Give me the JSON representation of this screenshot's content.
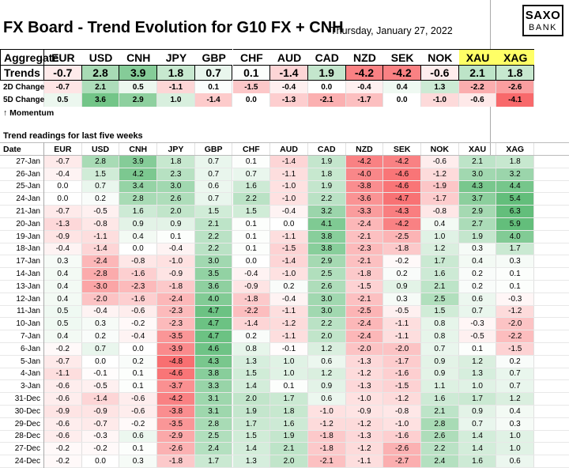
{
  "title": "FX Board - Trend Evolution for G10 FX + CNH",
  "date": "Thursday, January 27, 2022",
  "logo": {
    "line1": "SAXO",
    "line2": "BANK"
  },
  "currencies": [
    "EUR",
    "USD",
    "CNH",
    "JPY",
    "GBP",
    "CHF",
    "AUD",
    "CAD",
    "NZD",
    "SEK",
    "NOK",
    "XAU",
    "XAG"
  ],
  "aggregate_label": "Aggregate",
  "trends_label": "Trends ->",
  "trends": [
    -0.7,
    2.8,
    3.9,
    1.8,
    0.7,
    0.1,
    -1.4,
    1.9,
    -4.2,
    -4.2,
    -0.6,
    2.1,
    1.8
  ],
  "change_2d_label": "2D Change",
  "change_2d": [
    -0.7,
    2.1,
    0.5,
    -1.1,
    0.1,
    -1.5,
    -0.4,
    0.0,
    -0.4,
    0.4,
    1.3,
    -2.2,
    -2.6
  ],
  "change_5d_label": "5D Change",
  "change_5d": [
    0.5,
    3.6,
    2.9,
    1.0,
    -1.4,
    0.0,
    -1.3,
    -2.1,
    -1.7,
    0.0,
    -1.0,
    -0.6,
    -4.1
  ],
  "momentum_label": "↑ Momentum",
  "readings_title": "Trend readings for last five weeks",
  "date_header": "Date",
  "rows": [
    {
      "date": "27-Jan",
      "values": [
        -0.7,
        2.8,
        3.9,
        1.8,
        0.7,
        0.1,
        -1.4,
        1.9,
        -4.2,
        -4.2,
        -0.6,
        2.1,
        1.8
      ]
    },
    {
      "date": "26-Jan",
      "values": [
        -0.4,
        1.5,
        4.2,
        2.3,
        0.7,
        0.7,
        -1.1,
        1.8,
        -4.0,
        -4.6,
        -1.2,
        3.0,
        3.2
      ]
    },
    {
      "date": "25-Jan",
      "values": [
        0.0,
        0.7,
        3.4,
        3.0,
        0.6,
        1.6,
        -1.0,
        1.9,
        -3.8,
        -4.6,
        -1.9,
        4.3,
        4.4
      ]
    },
    {
      "date": "24-Jan",
      "values": [
        0.0,
        0.2,
        2.8,
        2.6,
        0.7,
        2.2,
        -1.0,
        2.2,
        -3.6,
        -4.7,
        -1.7,
        3.7,
        5.4
      ]
    },
    {
      "date": "21-Jan",
      "values": [
        -0.7,
        -0.5,
        1.6,
        2.0,
        1.5,
        1.5,
        -0.4,
        3.2,
        -3.3,
        -4.3,
        -0.8,
        2.9,
        6.3
      ]
    },
    {
      "date": "20-Jan",
      "values": [
        -1.3,
        -0.8,
        0.9,
        0.9,
        2.1,
        0.1,
        0.0,
        4.1,
        -2.4,
        -4.2,
        0.4,
        2.7,
        5.9
      ]
    },
    {
      "date": "19-Jan",
      "values": [
        -0.9,
        -1.1,
        0.4,
        0.1,
        2.2,
        0.1,
        -1.1,
        3.8,
        -2.1,
        -2.5,
        1.0,
        1.9,
        4.0
      ]
    },
    {
      "date": "18-Jan",
      "values": [
        -0.4,
        -1.4,
        0.0,
        -0.4,
        2.2,
        0.1,
        -1.5,
        3.8,
        -2.3,
        -1.8,
        1.2,
        0.3,
        1.7
      ]
    },
    {
      "date": "17-Jan",
      "values": [
        0.3,
        -2.4,
        -0.8,
        -1.0,
        3.0,
        0.0,
        -1.4,
        2.9,
        -2.1,
        -0.2,
        1.7,
        0.4,
        0.3
      ]
    },
    {
      "date": "14-Jan",
      "values": [
        0.4,
        -2.8,
        -1.6,
        -0.9,
        3.5,
        -0.4,
        -1.0,
        2.5,
        -1.8,
        0.2,
        1.6,
        0.2,
        0.1
      ]
    },
    {
      "date": "13-Jan",
      "values": [
        0.4,
        -3.0,
        -2.3,
        -1.8,
        3.6,
        -0.9,
        0.2,
        2.6,
        -1.5,
        0.9,
        2.1,
        0.2,
        0.1
      ]
    },
    {
      "date": "12-Jan",
      "values": [
        0.4,
        -2.0,
        -1.6,
        -2.4,
        4.0,
        -1.8,
        -0.4,
        3.0,
        -2.1,
        0.3,
        2.5,
        0.6,
        -0.3
      ]
    },
    {
      "date": "11-Jan",
      "values": [
        0.5,
        -0.4,
        -0.6,
        -2.3,
        4.7,
        -2.2,
        -1.1,
        3.0,
        -2.5,
        -0.5,
        1.5,
        0.7,
        -1.2
      ]
    },
    {
      "date": "10-Jan",
      "values": [
        0.5,
        0.3,
        -0.2,
        -2.3,
        4.7,
        -1.4,
        -1.2,
        2.2,
        -2.4,
        -1.1,
        0.8,
        -0.3,
        -2.0
      ]
    },
    {
      "date": "7-Jan",
      "values": [
        0.4,
        0.2,
        -0.4,
        -3.5,
        4.7,
        0.2,
        -1.1,
        2.0,
        -2.4,
        -1.1,
        0.8,
        -0.5,
        -2.2
      ]
    },
    {
      "date": "6-Jan",
      "values": [
        -0.2,
        0.7,
        0.0,
        -3.9,
        4.6,
        0.8,
        -0.1,
        1.2,
        -2.0,
        -2.0,
        0.7,
        0.1,
        -1.5
      ]
    },
    {
      "date": "5-Jan",
      "values": [
        -0.7,
        0.0,
        0.2,
        -4.8,
        4.3,
        1.3,
        1.0,
        0.6,
        -1.3,
        -1.7,
        0.9,
        1.2,
        0.2
      ]
    },
    {
      "date": "4-Jan",
      "values": [
        -1.1,
        -0.1,
        0.1,
        -4.6,
        3.8,
        1.5,
        1.0,
        1.2,
        -1.2,
        -1.6,
        0.9,
        1.3,
        0.7
      ]
    },
    {
      "date": "3-Jan",
      "values": [
        -0.6,
        -0.5,
        0.1,
        -3.7,
        3.3,
        1.4,
        0.1,
        0.9,
        -1.3,
        -1.5,
        1.1,
        1.0,
        0.7
      ]
    },
    {
      "date": "31-Dec",
      "values": [
        -0.6,
        -1.4,
        -0.6,
        -4.2,
        3.1,
        2.0,
        1.7,
        0.6,
        -1.0,
        -1.2,
        1.6,
        1.7,
        1.2
      ]
    },
    {
      "date": "30-Dec",
      "values": [
        -0.9,
        -0.9,
        -0.6,
        -3.8,
        3.1,
        1.9,
        1.8,
        -1.0,
        -0.9,
        -0.8,
        2.1,
        0.9,
        0.4
      ]
    },
    {
      "date": "29-Dec",
      "values": [
        -0.6,
        -0.7,
        -0.2,
        -3.5,
        2.8,
        1.7,
        1.6,
        -1.2,
        -1.2,
        -1.0,
        2.8,
        0.7,
        0.3
      ]
    },
    {
      "date": "28-Dec",
      "values": [
        -0.6,
        -0.3,
        0.6,
        -2.9,
        2.5,
        1.5,
        1.9,
        -1.8,
        -1.3,
        -1.6,
        2.6,
        1.4,
        1.0
      ]
    },
    {
      "date": "27-Dec",
      "values": [
        -0.2,
        -0.2,
        0.1,
        -2.6,
        2.4,
        1.4,
        2.1,
        -1.8,
        -1.2,
        -2.6,
        2.2,
        1.4,
        1.0
      ]
    },
    {
      "date": "24-Dec",
      "values": [
        -0.2,
        0.0,
        0.3,
        -1.8,
        1.7,
        1.3,
        2.0,
        -2.1,
        -1.1,
        -2.7,
        2.4,
        1.6,
        0.6
      ]
    }
  ],
  "colors": {
    "positive": "#63be7b",
    "negative": "#f8696b",
    "neutral": "#ffffff",
    "metals_highlight": "#ffff66"
  }
}
